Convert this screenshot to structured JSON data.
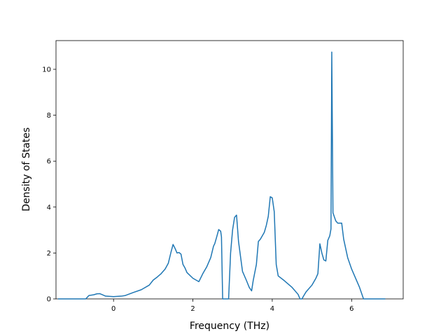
{
  "chart_data": {
    "type": "line",
    "title": "",
    "xlabel": "Frequency (THz)",
    "ylabel": "Density of States",
    "xlim": [
      -1.45,
      7.3
    ],
    "ylim": [
      0,
      11.25
    ],
    "xticks": [
      0,
      2,
      4,
      6
    ],
    "yticks": [
      0,
      2,
      4,
      6,
      8,
      10
    ],
    "grid": false,
    "legend": "none",
    "series": [
      {
        "color": "#1f77b4",
        "x": [
          -1.4,
          -0.7,
          -0.62,
          -0.5,
          -0.42,
          -0.35,
          -0.28,
          -0.2,
          0.0,
          0.2,
          0.3,
          0.5,
          0.7,
          0.9,
          1.0,
          1.1,
          1.2,
          1.3,
          1.38,
          1.45,
          1.5,
          1.55,
          1.6,
          1.65,
          1.7,
          1.75,
          1.8,
          1.85,
          2.0,
          2.15,
          2.25,
          2.35,
          2.45,
          2.52,
          2.55,
          2.6,
          2.65,
          2.7,
          2.72,
          2.75,
          2.78,
          2.9,
          2.95,
          3.0,
          3.05,
          3.1,
          3.15,
          3.25,
          3.35,
          3.42,
          3.48,
          3.52,
          3.6,
          3.65,
          3.7,
          3.8,
          3.85,
          3.9,
          3.95,
          4.0,
          4.05,
          4.1,
          4.15,
          4.3,
          4.5,
          4.65,
          4.7,
          4.75,
          4.78,
          4.85,
          5.0,
          5.1,
          5.15,
          5.2,
          5.25,
          5.3,
          5.35,
          5.4,
          5.45,
          5.48,
          5.5,
          5.53,
          5.6,
          5.65,
          5.7,
          5.75,
          5.8,
          5.85,
          5.9,
          6.0,
          6.1,
          6.2,
          6.3,
          6.85
        ],
        "y": [
          0.0,
          0.0,
          0.15,
          0.18,
          0.22,
          0.23,
          0.18,
          0.12,
          0.1,
          0.12,
          0.15,
          0.28,
          0.4,
          0.6,
          0.82,
          0.95,
          1.1,
          1.3,
          1.55,
          2.05,
          2.37,
          2.2,
          2.0,
          2.02,
          1.95,
          1.5,
          1.35,
          1.15,
          0.9,
          0.75,
          1.1,
          1.4,
          1.8,
          2.3,
          2.4,
          2.7,
          3.02,
          2.95,
          2.7,
          0.0,
          0.0,
          0.0,
          2.0,
          3.0,
          3.55,
          3.65,
          2.5,
          1.2,
          0.8,
          0.5,
          0.35,
          0.8,
          1.5,
          2.5,
          2.6,
          2.9,
          3.2,
          3.6,
          4.45,
          4.4,
          3.8,
          1.5,
          1.0,
          0.8,
          0.5,
          0.2,
          0.0,
          0.0,
          0.1,
          0.3,
          0.6,
          0.9,
          1.1,
          2.4,
          2.0,
          1.7,
          1.65,
          2.55,
          2.75,
          3.05,
          10.75,
          3.75,
          3.4,
          3.3,
          3.3,
          3.3,
          2.6,
          2.2,
          1.8,
          1.3,
          0.9,
          0.5,
          0.0,
          0.0
        ]
      }
    ]
  }
}
